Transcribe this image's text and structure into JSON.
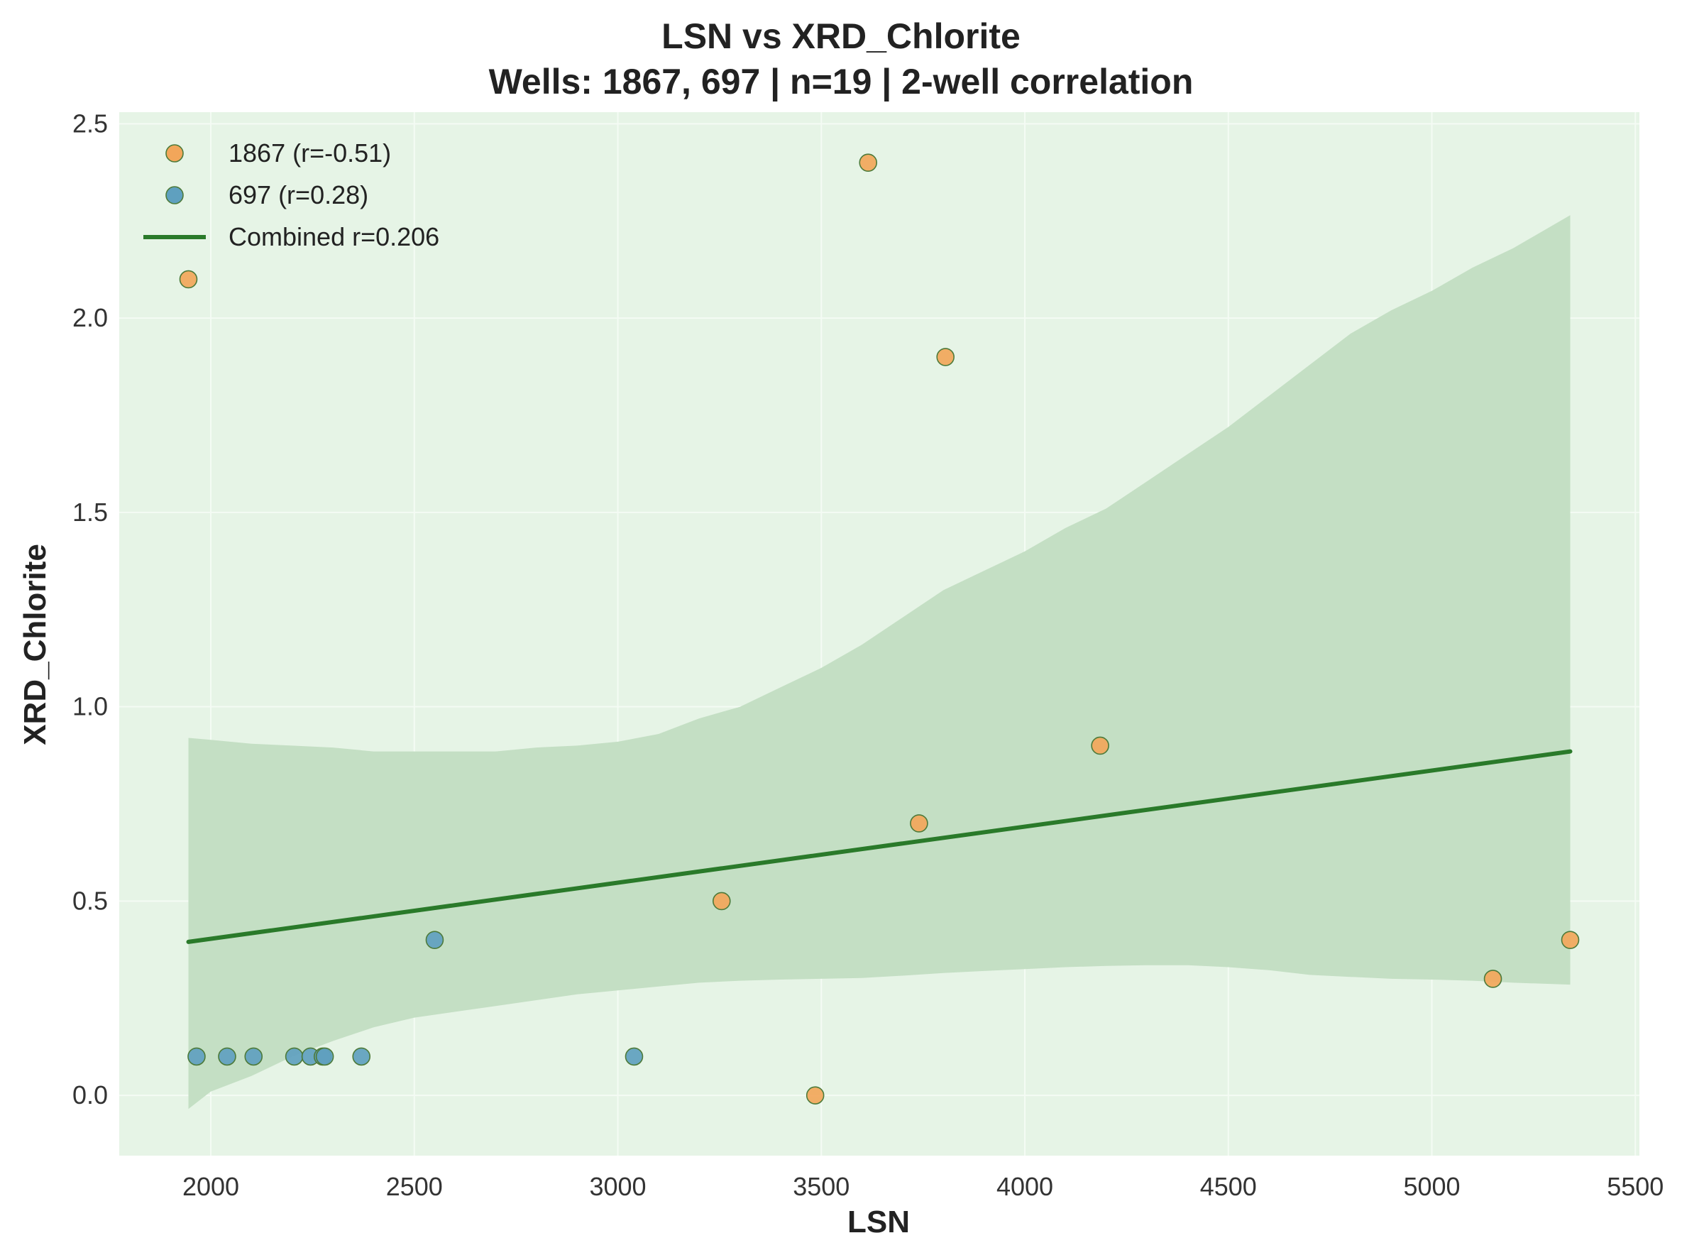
{
  "chart_data": {
    "type": "scatter",
    "title": "LSN vs XRD_Chlorite",
    "subtitle": "Wells: 1867, 697 | n=19 | 2-well correlation",
    "xlabel": "LSN",
    "ylabel": "XRD_Chlorite",
    "xlim": [
      1775,
      5510
    ],
    "ylim": [
      -0.155,
      2.53
    ],
    "xticks": [
      2000,
      2500,
      3000,
      3500,
      4000,
      4500,
      5000,
      5500
    ],
    "xtick_labels": [
      "2000",
      "2500",
      "3000",
      "3500",
      "4000",
      "4500",
      "5000",
      "5500"
    ],
    "yticks": [
      0.0,
      0.5,
      1.0,
      1.5,
      2.0,
      2.5
    ],
    "ytick_labels": [
      "0.0",
      "0.5",
      "1.0",
      "1.5",
      "2.0",
      "2.5"
    ],
    "grid": true,
    "legend_position": "top-left",
    "colors": {
      "plot_bg": "#e6f4e6",
      "grid": "#f4fbf4",
      "band": "#c4dfc4",
      "fit_line": "#2a7a2a",
      "well_1867": "#f2a65a",
      "well_697": "#5fa0bf",
      "marker_edge": "#4d7a3a"
    },
    "series": [
      {
        "name": "1867 (r=-0.51)",
        "color": "#f2a65a",
        "points": [
          {
            "x": 1945,
            "y": 2.1
          },
          {
            "x": 3255,
            "y": 0.5
          },
          {
            "x": 3485,
            "y": 0.0
          },
          {
            "x": 3615,
            "y": 2.4
          },
          {
            "x": 3740,
            "y": 0.7
          },
          {
            "x": 3805,
            "y": 1.9
          },
          {
            "x": 4185,
            "y": 0.9
          },
          {
            "x": 5150,
            "y": 0.3
          },
          {
            "x": 5340,
            "y": 0.4
          }
        ]
      },
      {
        "name": "697 (r=0.28)",
        "color": "#5fa0bf",
        "points": [
          {
            "x": 1965,
            "y": 0.1
          },
          {
            "x": 2040,
            "y": 0.1
          },
          {
            "x": 2105,
            "y": 0.1
          },
          {
            "x": 2205,
            "y": 0.1
          },
          {
            "x": 2245,
            "y": 0.1
          },
          {
            "x": 2275,
            "y": 0.1
          },
          {
            "x": 2280,
            "y": 0.1
          },
          {
            "x": 2370,
            "y": 0.1
          },
          {
            "x": 2550,
            "y": 0.4
          },
          {
            "x": 3040,
            "y": 0.1
          }
        ]
      }
    ],
    "fit_line": {
      "name": "Combined r=0.206",
      "x": [
        1945,
        5340
      ],
      "y": [
        0.395,
        0.885
      ]
    },
    "confidence_band": {
      "x": [
        1945,
        2000,
        2100,
        2200,
        2300,
        2400,
        2500,
        2600,
        2700,
        2800,
        2900,
        3000,
        3100,
        3200,
        3300,
        3400,
        3500,
        3600,
        3700,
        3800,
        3900,
        4000,
        4100,
        4200,
        4300,
        4400,
        4500,
        4600,
        4700,
        4800,
        4900,
        5000,
        5100,
        5200,
        5340
      ],
      "upper": [
        0.92,
        0.915,
        0.905,
        0.9,
        0.895,
        0.885,
        0.885,
        0.885,
        0.885,
        0.895,
        0.9,
        0.91,
        0.93,
        0.97,
        1.0,
        1.05,
        1.1,
        1.16,
        1.23,
        1.3,
        1.35,
        1.4,
        1.46,
        1.51,
        1.58,
        1.65,
        1.72,
        1.8,
        1.88,
        1.96,
        2.02,
        2.07,
        2.13,
        2.18,
        2.265
      ],
      "lower": [
        -0.035,
        0.01,
        0.05,
        0.1,
        0.14,
        0.175,
        0.2,
        0.215,
        0.23,
        0.245,
        0.26,
        0.27,
        0.28,
        0.29,
        0.295,
        0.298,
        0.3,
        0.302,
        0.308,
        0.315,
        0.32,
        0.325,
        0.33,
        0.333,
        0.335,
        0.335,
        0.33,
        0.322,
        0.31,
        0.305,
        0.3,
        0.298,
        0.295,
        0.29,
        0.285
      ]
    },
    "legend": [
      {
        "label": "1867 (r=-0.51)",
        "kind": "marker",
        "color": "#f2a65a"
      },
      {
        "label": "697 (r=0.28)",
        "kind": "marker",
        "color": "#5fa0bf"
      },
      {
        "label": "Combined r=0.206",
        "kind": "line",
        "color": "#2a7a2a"
      }
    ]
  }
}
